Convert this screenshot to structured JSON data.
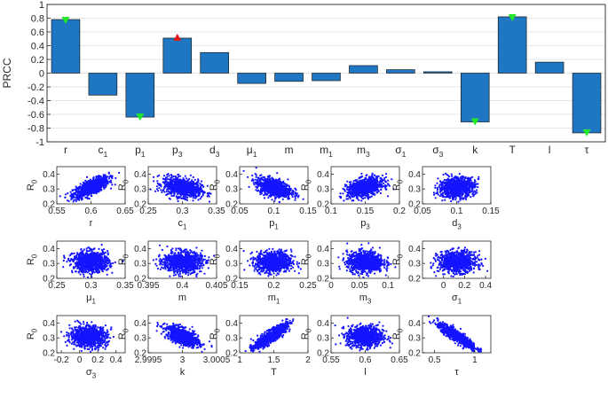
{
  "colors": {
    "bar": "#1f77c4",
    "bar_edge": "#1a1a1a",
    "scatter": "#1414ff",
    "marker_up": "#e0181b",
    "marker_down": "#22e82a",
    "axis": "#262626",
    "grid": "#dcdcdc"
  },
  "chart_data": [
    {
      "type": "bar",
      "ylabel": "PRCC",
      "ylim": [
        -1,
        1
      ],
      "yticks": [
        "-1",
        "-0.8",
        "-0.6",
        "-0.4",
        "-0.2",
        "0",
        "0.2",
        "0.4",
        "0.6",
        "0.8",
        "1"
      ],
      "grid": true,
      "categories": [
        {
          "base": "r",
          "sub": ""
        },
        {
          "base": "c",
          "sub": "1"
        },
        {
          "base": "p",
          "sub": "1"
        },
        {
          "base": "p",
          "sub": "3"
        },
        {
          "base": "d",
          "sub": "3"
        },
        {
          "base": "μ",
          "sub": "1"
        },
        {
          "base": "m",
          "sub": ""
        },
        {
          "base": "m",
          "sub": "1"
        },
        {
          "base": "m",
          "sub": "3"
        },
        {
          "base": "σ",
          "sub": "1"
        },
        {
          "base": "σ",
          "sub": "3"
        },
        {
          "base": "k",
          "sub": ""
        },
        {
          "base": "T",
          "sub": ""
        },
        {
          "base": "l",
          "sub": ""
        },
        {
          "base": "τ",
          "sub": ""
        }
      ],
      "values": [
        0.78,
        -0.32,
        -0.64,
        0.51,
        0.3,
        -0.15,
        -0.12,
        -0.11,
        0.11,
        0.05,
        0.02,
        -0.71,
        0.82,
        0.16,
        -0.87
      ],
      "markers": [
        {
          "index": 0,
          "shape": "triangle-down",
          "color": "green"
        },
        {
          "index": 2,
          "shape": "triangle-down",
          "color": "green"
        },
        {
          "index": 3,
          "shape": "triangle-up",
          "color": "red"
        },
        {
          "index": 11,
          "shape": "triangle-down",
          "color": "green"
        },
        {
          "index": 12,
          "shape": "triangle-down",
          "color": "green"
        },
        {
          "index": 14,
          "shape": "triangle-down",
          "color": "green"
        }
      ]
    },
    {
      "type": "scatter",
      "ylabel": {
        "base": "R",
        "sub": "0"
      },
      "ylim": [
        0.2,
        0.45
      ],
      "yticks": [
        "0.2",
        "0.3",
        "0.4"
      ],
      "y_center": 0.31,
      "y_spread": 0.035,
      "points_per_panel": 900,
      "panels": [
        {
          "xlabel": {
            "base": "r",
            "sub": ""
          },
          "xlim": [
            0.55,
            0.65
          ],
          "xticks": [
            "0.55",
            "0.6",
            "0.65"
          ],
          "x_center": 0.6,
          "x_spread": 0.013,
          "trend": 0.05
        },
        {
          "xlabel": {
            "base": "c",
            "sub": "1"
          },
          "xlim": [
            0.25,
            0.35
          ],
          "xticks": [
            "0.25",
            "0.3",
            "0.35"
          ],
          "x_center": 0.3,
          "x_spread": 0.014,
          "trend": -0.02
        },
        {
          "xlabel": {
            "base": "p",
            "sub": "1"
          },
          "xlim": [
            0.05,
            0.15
          ],
          "xticks": [
            "0.05",
            "0.1",
            "0.15"
          ],
          "x_center": 0.1,
          "x_spread": 0.013,
          "trend": -0.03
        },
        {
          "xlabel": {
            "base": "p",
            "sub": "3"
          },
          "xlim": [
            0.1,
            0.2
          ],
          "xticks": [
            "0.1",
            "0.15",
            "0.2"
          ],
          "x_center": 0.15,
          "x_spread": 0.013,
          "trend": 0.025
        },
        {
          "xlabel": {
            "base": "d",
            "sub": "3"
          },
          "xlim": [
            0.05,
            0.15
          ],
          "xticks": [
            "0.05",
            "0.1",
            "0.15"
          ],
          "x_center": 0.1,
          "x_spread": 0.013,
          "trend": 0.01
        },
        {
          "xlabel": {
            "base": "μ",
            "sub": "1"
          },
          "xlim": [
            0.25,
            0.35
          ],
          "xticks": [
            "0.25",
            "0.3",
            "0.35"
          ],
          "x_center": 0.3,
          "x_spread": 0.013,
          "trend": 0
        },
        {
          "xlabel": {
            "base": "m",
            "sub": ""
          },
          "xlim": [
            0.395,
            0.405
          ],
          "xticks": [
            "0.395",
            "0.4",
            "0.405"
          ],
          "x_center": 0.4,
          "x_spread": 0.0014,
          "trend": 0
        },
        {
          "xlabel": {
            "base": "m",
            "sub": "1"
          },
          "xlim": [
            0.15,
            0.25
          ],
          "xticks": [
            "0.15",
            "0.2",
            "0.25"
          ],
          "x_center": 0.2,
          "x_spread": 0.013,
          "trend": 0
        },
        {
          "xlabel": {
            "base": "m",
            "sub": "3"
          },
          "xlim": [
            0,
            0.12
          ],
          "xticks": [
            "0",
            "0.05",
            "0.1"
          ],
          "x_center": 0.06,
          "x_spread": 0.016,
          "trend": 0
        },
        {
          "xlabel": {
            "base": "σ",
            "sub": "1"
          },
          "xlim": [
            -0.2,
            0.45
          ],
          "xticks": [
            "0",
            "0.2",
            "0.4"
          ],
          "x_center": 0.13,
          "x_spread": 0.09,
          "trend": 0
        },
        {
          "xlabel": {
            "base": "σ",
            "sub": "3"
          },
          "xlim": [
            -0.25,
            0.5
          ],
          "xticks": [
            "-0.2",
            "0",
            "0.2",
            "0.4"
          ],
          "x_center": 0.1,
          "x_spread": 0.1,
          "trend": 0
        },
        {
          "xlabel": {
            "base": "k",
            "sub": ""
          },
          "xlim": [
            2.9995,
            3.0005
          ],
          "xticks": [
            "2.9995",
            "3",
            "3.0005"
          ],
          "x_center": 3,
          "x_spread": 0.00012,
          "trend": -0.04
        },
        {
          "xlabel": {
            "base": "T",
            "sub": ""
          },
          "xlim": [
            1,
            2
          ],
          "xticks": [
            "1",
            "1.5",
            "2"
          ],
          "x_center": 1.45,
          "x_spread": 0.12,
          "trend": 0.07
        },
        {
          "xlabel": {
            "base": "l",
            "sub": ""
          },
          "xlim": [
            0.55,
            0.65
          ],
          "xticks": [
            "0.55",
            "0.6",
            "0.65"
          ],
          "x_center": 0.6,
          "x_spread": 0.013,
          "trend": 0
        },
        {
          "xlabel": {
            "base": "τ",
            "sub": ""
          },
          "xlim": [
            0.35,
            1.2
          ],
          "xticks": [
            "0.5",
            "1"
          ],
          "x_center": 0.78,
          "x_spread": 0.12,
          "trend": -0.08
        }
      ]
    }
  ]
}
